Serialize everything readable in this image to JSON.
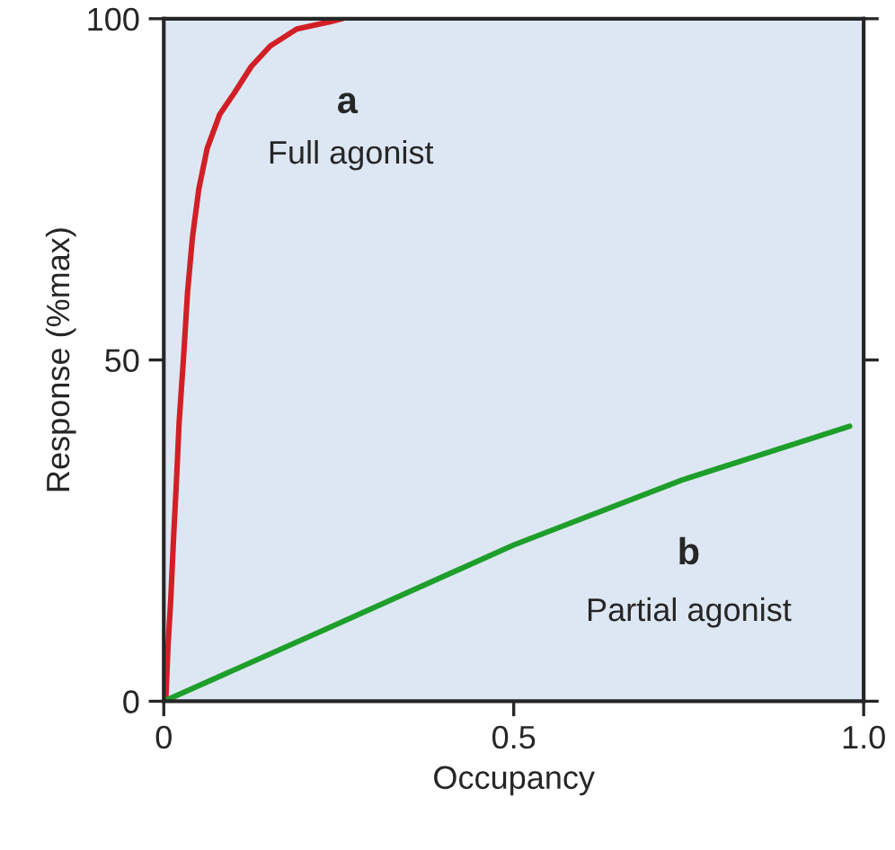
{
  "chart_data": {
    "type": "line",
    "xlabel": "Occupancy",
    "ylabel": "Response (%max)",
    "xlim": [
      0,
      1
    ],
    "ylim": [
      0,
      100
    ],
    "xticks": [
      0,
      0.5,
      {
        "value": 1,
        "label": "1.0"
      }
    ],
    "yticks": [
      0,
      50,
      100
    ],
    "grid": false,
    "legend": false,
    "marker": "none",
    "line_style": "solid",
    "series": [
      {
        "color": "#d21f26",
        "x": [
          0,
          0.003,
          0.006,
          0.01,
          0.014,
          0.018,
          0.022,
          0.028,
          0.034,
          0.041,
          0.05,
          0.062,
          0.08,
          0.1,
          0.125,
          0.152,
          0.19,
          0.236,
          0.255
        ],
        "values": [
          0,
          0.5,
          8,
          15,
          24,
          32,
          41,
          50,
          60,
          68,
          75,
          81,
          86,
          89,
          93,
          96,
          98.5,
          99.5,
          100
        ]
      },
      {
        "color": "#1e9e2a",
        "x": [
          0,
          0.23,
          0.5,
          0.74,
          0.98
        ],
        "values": [
          0,
          10.5,
          22.9,
          32.4,
          40.3
        ]
      }
    ],
    "annotations": [
      "a",
      "Full agonist",
      "b",
      "Partial agonist"
    ]
  }
}
